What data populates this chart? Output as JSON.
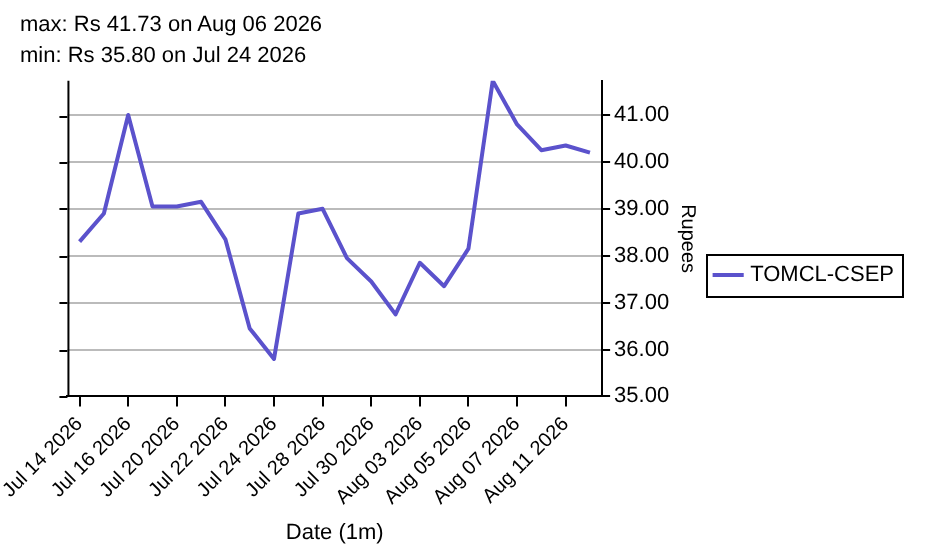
{
  "chart_data": {
    "type": "line",
    "title": "max: Rs 41.73 on Aug 06 2026",
    "subtitle": "min: Rs 35.80 on Jul 24 2026",
    "xlabel": "Date (1m)",
    "ylabel": "Rupees",
    "categories": [
      "Jul 14 2026",
      null,
      "Jul 16 2026",
      null,
      "Jul 20 2026",
      null,
      "Jul 22 2026",
      null,
      "Jul 24 2026",
      null,
      "Jul 28 2026",
      null,
      "Jul 30 2026",
      null,
      "Aug 03 2026",
      null,
      "Aug 05 2026",
      null,
      "Aug 07 2026",
      null,
      "Aug 11 2026",
      null
    ],
    "series": [
      {
        "name": "TOMCL-CSEP",
        "color": "#5b52cc",
        "values": [
          38.3,
          38.9,
          41.0,
          39.05,
          39.05,
          39.15,
          38.35,
          36.45,
          35.8,
          38.9,
          39.0,
          37.95,
          37.45,
          36.75,
          37.85,
          37.35,
          38.15,
          41.73,
          40.8,
          40.25,
          40.35,
          40.2
        ]
      }
    ],
    "ylim": [
      35,
      41.73
    ],
    "yticks": [
      {
        "value": 35,
        "label": "35.00"
      },
      {
        "value": 36,
        "label": "36.00"
      },
      {
        "value": 37,
        "label": "37.00"
      },
      {
        "value": 38,
        "label": "38.00"
      },
      {
        "value": 39,
        "label": "39.00"
      },
      {
        "value": 40,
        "label": "40.00"
      },
      {
        "value": 41,
        "label": "41.00"
      }
    ],
    "grid": "y",
    "legend": "right",
    "marker": "none",
    "line_style": "solid"
  }
}
